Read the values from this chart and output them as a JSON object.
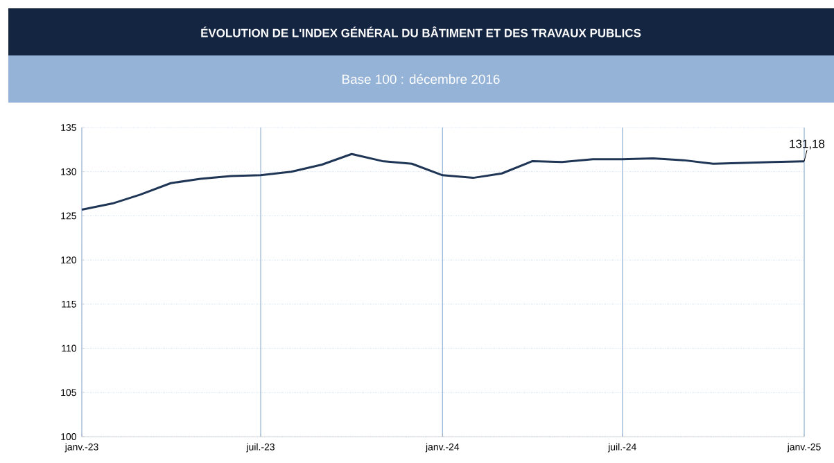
{
  "chart_data": {
    "type": "line",
    "title": "ÉVOLUTION DE L'INDEX GÉNÉRAL DU BÂTIMENT ET DES TRAVAUX PUBLICS",
    "subtitle": "Base 100 : décembre 2016",
    "x": [
      "2023-01",
      "2023-02",
      "2023-03",
      "2023-04",
      "2023-05",
      "2023-06",
      "2023-07",
      "2023-08",
      "2023-09",
      "2023-10",
      "2023-11",
      "2023-12",
      "2024-01",
      "2024-02",
      "2024-03",
      "2024-04",
      "2024-05",
      "2024-06",
      "2024-07",
      "2024-08",
      "2024-09",
      "2024-10",
      "2024-11",
      "2024-12",
      "2025-01"
    ],
    "series": [
      {
        "color": "#1f3556",
        "values": [
          125.7,
          126.4,
          127.4,
          128.7,
          129.2,
          129.5,
          129.6,
          130.0,
          130.8,
          132.0,
          131.2,
          130.9,
          129.6,
          129.3,
          129.8,
          131.2,
          131.1,
          131.4,
          131.4,
          131.5,
          131.3,
          130.9,
          131.0,
          131.1,
          131.18
        ]
      }
    ],
    "xlim": [
      "2023-01",
      "2025-01"
    ],
    "xticks": [
      {
        "value": "2023-01",
        "label": "janv.-23"
      },
      {
        "value": "2023-07",
        "label": "juil.-23"
      },
      {
        "value": "2024-01",
        "label": "janv.-24"
      },
      {
        "value": "2024-07",
        "label": "juil.-24"
      },
      {
        "value": "2025-01",
        "label": "janv.-25"
      }
    ],
    "ylim": [
      100,
      135
    ],
    "yticks": [
      100,
      105,
      110,
      115,
      120,
      125,
      130,
      135
    ],
    "grid": true,
    "marker": "none",
    "line_style": "solid",
    "annotations": [
      {
        "text": "131,18",
        "x": "2025-01",
        "y": 131.18
      }
    ]
  }
}
